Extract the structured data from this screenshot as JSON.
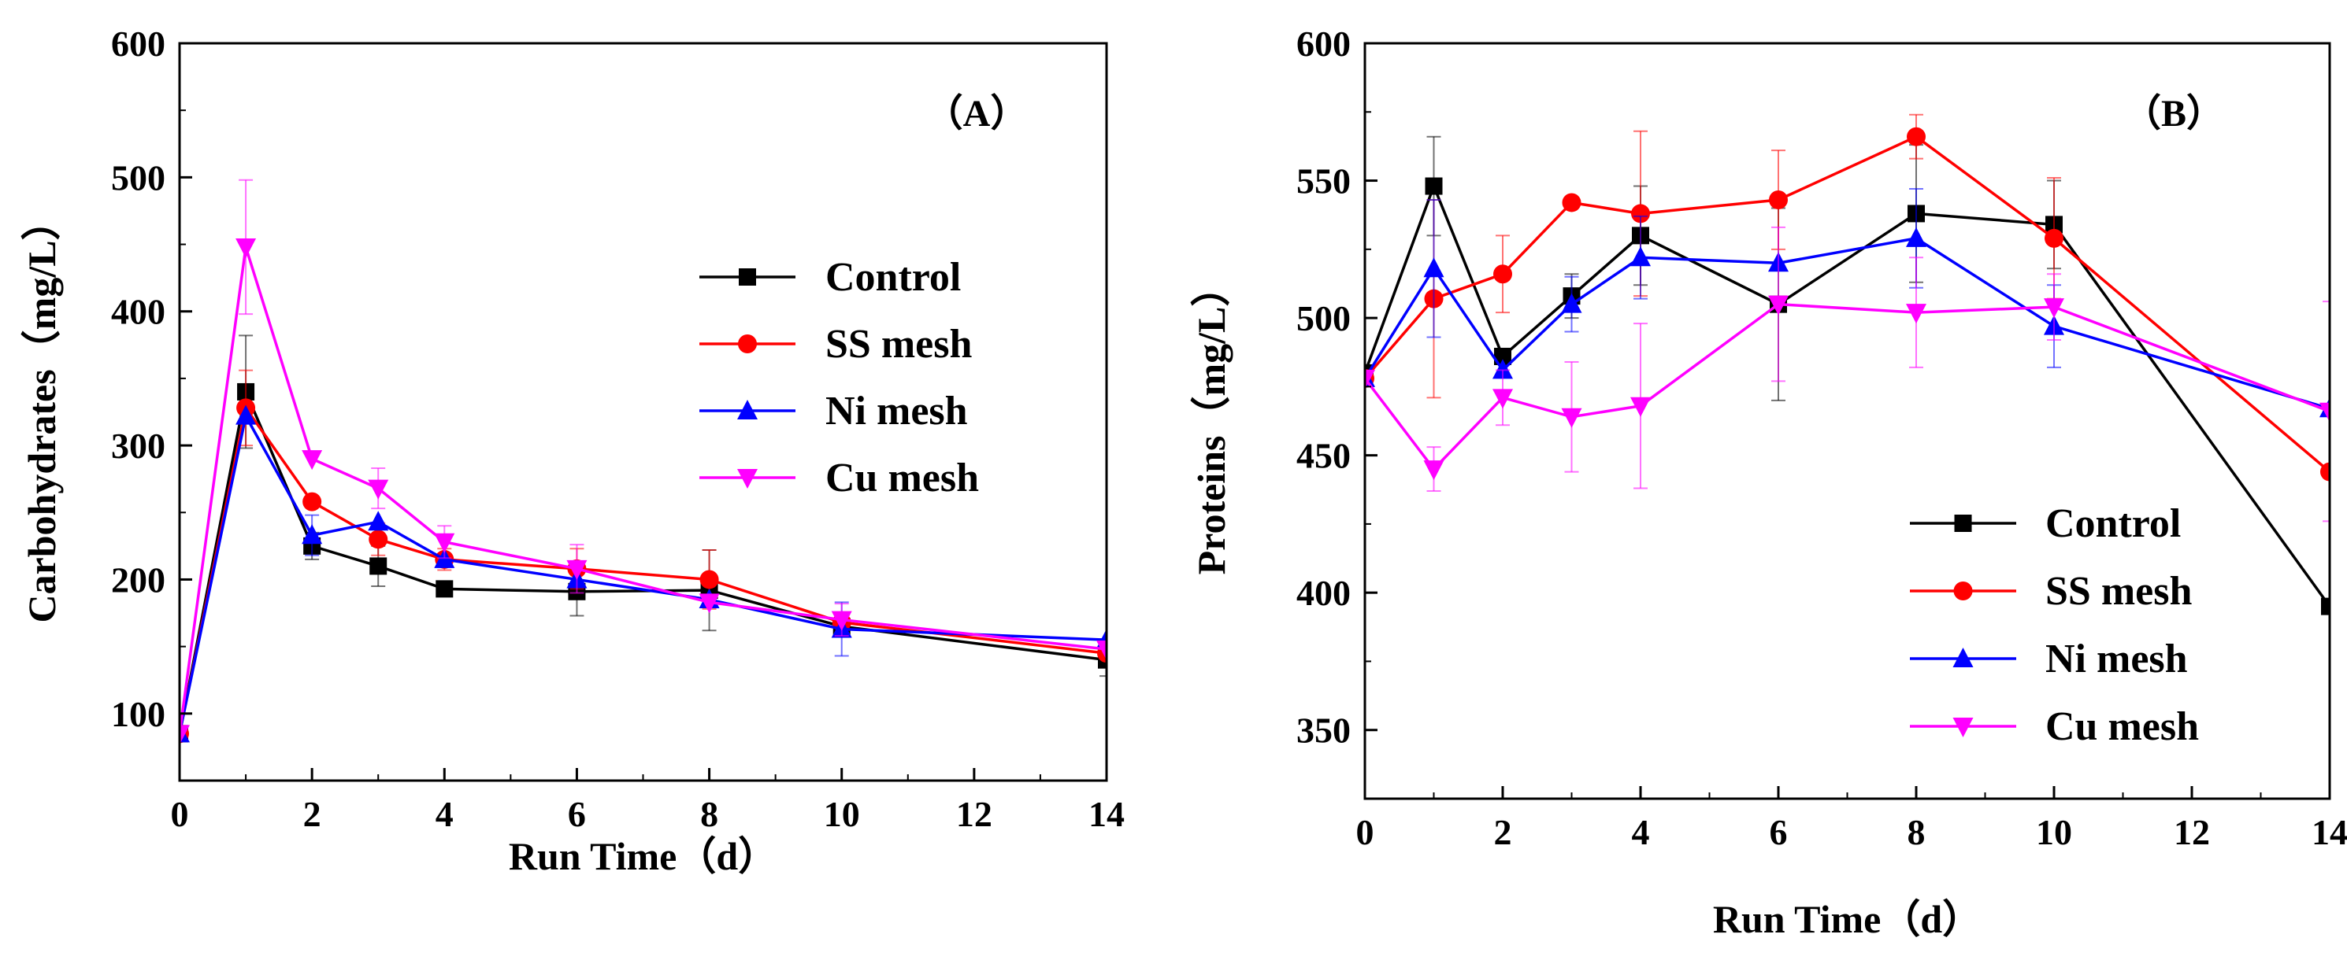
{
  "chart_data": [
    {
      "type": "line",
      "panel_label": "（A）",
      "xlabel": "Run Time（d）",
      "ylabel": "Carbohydrates（mg/L）",
      "xlim": [
        0,
        14
      ],
      "ylim": [
        50,
        600
      ],
      "xticks": [
        0,
        2,
        4,
        6,
        8,
        10,
        12,
        14
      ],
      "yticks": [
        100,
        200,
        300,
        400,
        500,
        600
      ],
      "legend_position": "center-right",
      "series": [
        {
          "name": "Control",
          "color": "#000000",
          "marker": "square",
          "points": [
            {
              "x": 0,
              "y": 85
            },
            {
              "x": 1,
              "y": 340
            },
            {
              "x": 2,
              "y": 225
            },
            {
              "x": 3,
              "y": 210
            },
            {
              "x": 4,
              "y": 193
            },
            {
              "x": 6,
              "y": 191
            },
            {
              "x": 8,
              "y": 192
            },
            {
              "x": 10,
              "y": 165
            },
            {
              "x": 14,
              "y": 140
            }
          ],
          "errors": [
            0,
            42,
            10,
            15,
            5,
            18,
            30,
            0,
            12
          ]
        },
        {
          "name": "SS mesh",
          "color": "#ff0000",
          "marker": "circle",
          "points": [
            {
              "x": 0,
              "y": 85
            },
            {
              "x": 1,
              "y": 328
            },
            {
              "x": 2,
              "y": 258
            },
            {
              "x": 3,
              "y": 230
            },
            {
              "x": 4,
              "y": 215
            },
            {
              "x": 6,
              "y": 208
            },
            {
              "x": 8,
              "y": 200
            },
            {
              "x": 10,
              "y": 168
            },
            {
              "x": 14,
              "y": 145
            }
          ],
          "errors": [
            0,
            28,
            0,
            12,
            8,
            15,
            22,
            0,
            0
          ]
        },
        {
          "name": "Ni mesh",
          "color": "#0000ff",
          "marker": "triangle-up",
          "points": [
            {
              "x": 0,
              "y": 85
            },
            {
              "x": 1,
              "y": 322
            },
            {
              "x": 2,
              "y": 233
            },
            {
              "x": 3,
              "y": 243
            },
            {
              "x": 4,
              "y": 215
            },
            {
              "x": 6,
              "y": 200
            },
            {
              "x": 8,
              "y": 185
            },
            {
              "x": 10,
              "y": 163
            },
            {
              "x": 14,
              "y": 155
            }
          ],
          "errors": [
            0,
            0,
            15,
            0,
            0,
            0,
            0,
            20,
            0
          ]
        },
        {
          "name": "Cu mesh",
          "color": "#ff00ff",
          "marker": "triangle-down",
          "points": [
            {
              "x": 0,
              "y": 85
            },
            {
              "x": 1,
              "y": 448
            },
            {
              "x": 2,
              "y": 290
            },
            {
              "x": 3,
              "y": 268
            },
            {
              "x": 4,
              "y": 228
            },
            {
              "x": 6,
              "y": 208
            },
            {
              "x": 8,
              "y": 183
            },
            {
              "x": 10,
              "y": 170
            },
            {
              "x": 14,
              "y": 148
            }
          ],
          "errors": [
            0,
            50,
            0,
            15,
            12,
            18,
            0,
            12,
            0
          ]
        }
      ]
    },
    {
      "type": "line",
      "panel_label": "（B）",
      "xlabel": "Run Time（d）",
      "ylabel": "Proteins（mg/L）",
      "xlim": [
        0,
        14
      ],
      "ylim": [
        325,
        600
      ],
      "xticks": [
        0,
        2,
        4,
        6,
        8,
        10,
        12,
        14
      ],
      "yticks": [
        350,
        400,
        450,
        500,
        550,
        600
      ],
      "legend_position": "lower-right",
      "series": [
        {
          "name": "Control",
          "color": "#000000",
          "marker": "square",
          "points": [
            {
              "x": 0,
              "y": 480
            },
            {
              "x": 1,
              "y": 548
            },
            {
              "x": 2,
              "y": 486
            },
            {
              "x": 3,
              "y": 508
            },
            {
              "x": 4,
              "y": 530
            },
            {
              "x": 6,
              "y": 505
            },
            {
              "x": 8,
              "y": 538
            },
            {
              "x": 10,
              "y": 534
            },
            {
              "x": 14,
              "y": 395
            }
          ],
          "errors": [
            0,
            18,
            0,
            8,
            18,
            35,
            25,
            16,
            0
          ]
        },
        {
          "name": "SS mesh",
          "color": "#ff0000",
          "marker": "circle",
          "points": [
            {
              "x": 0,
              "y": 478
            },
            {
              "x": 1,
              "y": 507
            },
            {
              "x": 2,
              "y": 516
            },
            {
              "x": 3,
              "y": 542
            },
            {
              "x": 4,
              "y": 538
            },
            {
              "x": 6,
              "y": 543
            },
            {
              "x": 8,
              "y": 566
            },
            {
              "x": 10,
              "y": 529
            },
            {
              "x": 14,
              "y": 444
            }
          ],
          "errors": [
            0,
            36,
            14,
            0,
            30,
            18,
            8,
            22,
            0
          ]
        },
        {
          "name": "Ni mesh",
          "color": "#0000ff",
          "marker": "triangle-up",
          "points": [
            {
              "x": 0,
              "y": 478
            },
            {
              "x": 1,
              "y": 518
            },
            {
              "x": 2,
              "y": 481
            },
            {
              "x": 3,
              "y": 505
            },
            {
              "x": 4,
              "y": 522
            },
            {
              "x": 6,
              "y": 520
            },
            {
              "x": 8,
              "y": 529
            },
            {
              "x": 10,
              "y": 497
            },
            {
              "x": 14,
              "y": 467
            }
          ],
          "errors": [
            0,
            25,
            0,
            10,
            15,
            0,
            18,
            15,
            0
          ]
        },
        {
          "name": "Cu mesh",
          "color": "#ff00ff",
          "marker": "triangle-down",
          "points": [
            {
              "x": 0,
              "y": 478
            },
            {
              "x": 1,
              "y": 445
            },
            {
              "x": 2,
              "y": 471
            },
            {
              "x": 3,
              "y": 464
            },
            {
              "x": 4,
              "y": 468
            },
            {
              "x": 6,
              "y": 505
            },
            {
              "x": 8,
              "y": 502
            },
            {
              "x": 10,
              "y": 504
            },
            {
              "x": 14,
              "y": 466
            }
          ],
          "errors": [
            0,
            8,
            10,
            20,
            30,
            28,
            20,
            12,
            40
          ]
        }
      ]
    }
  ]
}
